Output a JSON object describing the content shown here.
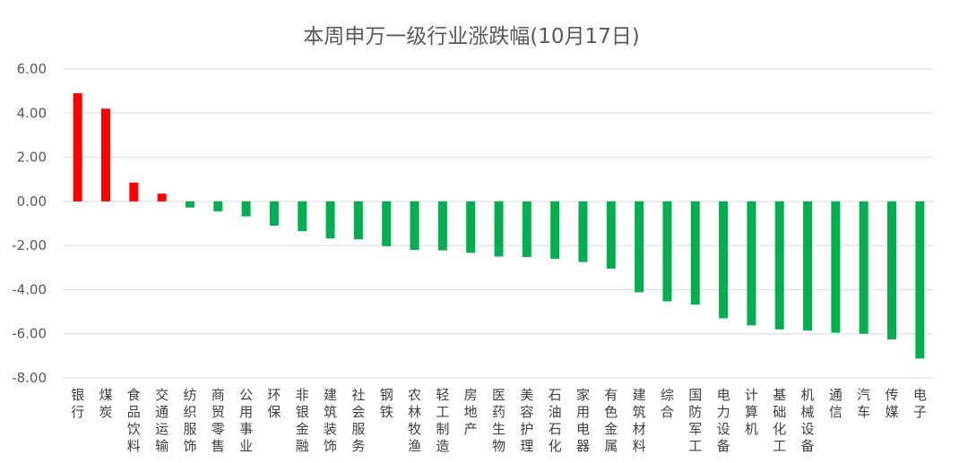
{
  "chart_data": {
    "type": "bar",
    "title": "本周申万一级行业涨跌幅(10月17日)",
    "xlabel": "",
    "ylabel": "",
    "ylim": [
      -8,
      6
    ],
    "yticks": [
      "6.00",
      "4.00",
      "2.00",
      "0.00",
      "-2.00",
      "-4.00",
      "-6.00",
      "-8.00"
    ],
    "grid": true,
    "legend": "none",
    "colors": {
      "positive": "#ff0000",
      "negative": "#00b050",
      "grid": "#d9d9d9"
    },
    "categories": [
      "银行",
      "煤炭",
      "食品饮料",
      "交通运输",
      "纺织服饰",
      "商贸零售",
      "公用事业",
      "环保",
      "非银金融",
      "建筑装饰",
      "社会服务",
      "钢铁",
      "农林牧渔",
      "轻工制造",
      "房地产",
      "医药生物",
      "美容护理",
      "石油石化",
      "家用电器",
      "有色金属",
      "建筑材料",
      "综合",
      "国防军工",
      "电力设备",
      "计算机",
      "基础化工",
      "机械设备",
      "通信",
      "汽车",
      "传媒",
      "电子"
    ],
    "values": [
      4.9,
      4.2,
      0.85,
      0.35,
      -0.28,
      -0.45,
      -0.68,
      -1.1,
      -1.35,
      -1.68,
      -1.72,
      -2.03,
      -2.2,
      -2.22,
      -2.33,
      -2.5,
      -2.52,
      -2.6,
      -2.75,
      -3.05,
      -4.12,
      -4.53,
      -4.68,
      -5.3,
      -5.62,
      -5.8,
      -5.85,
      -5.95,
      -6.0,
      -6.25,
      -7.12
    ]
  }
}
